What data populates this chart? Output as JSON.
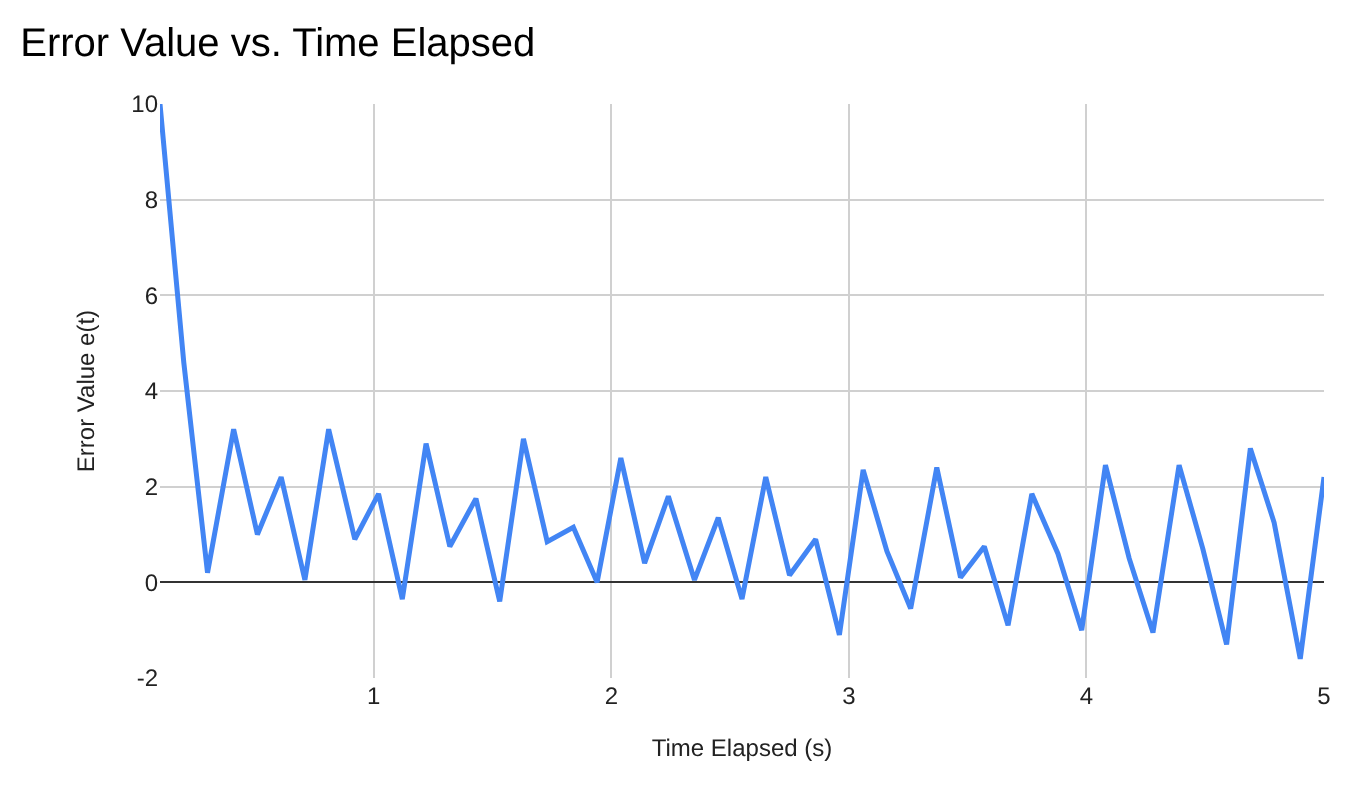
{
  "chart_data": {
    "type": "line",
    "title": "Error Value vs. Time Elapsed",
    "xlabel": "Time Elapsed (s)",
    "ylabel": "Error Value e(t)",
    "x": [
      0.1,
      0.2,
      0.3,
      0.41,
      0.51,
      0.61,
      0.71,
      0.81,
      0.92,
      1.02,
      1.12,
      1.22,
      1.32,
      1.43,
      1.53,
      1.63,
      1.73,
      1.84,
      1.94,
      2.04,
      2.14,
      2.24,
      2.35,
      2.45,
      2.55,
      2.65,
      2.75,
      2.86,
      2.96,
      3.06,
      3.16,
      3.26,
      3.37,
      3.47,
      3.57,
      3.67,
      3.77,
      3.88,
      3.98,
      4.08,
      4.18,
      4.28,
      4.39,
      4.49,
      4.59,
      4.69,
      4.79,
      4.9,
      5.0
    ],
    "series": [
      {
        "color": "#4285f4",
        "values": [
          10,
          4.6,
          0.2,
          3.2,
          1.0,
          2.2,
          0.05,
          3.2,
          0.9,
          1.85,
          -0.35,
          2.9,
          0.75,
          1.75,
          -0.4,
          3.0,
          0.85,
          1.15,
          0.0,
          2.6,
          0.4,
          1.8,
          0.05,
          1.35,
          -0.35,
          2.2,
          0.15,
          0.9,
          -1.1,
          2.35,
          0.65,
          -0.55,
          2.4,
          0.1,
          0.75,
          -0.9,
          1.85,
          0.6,
          -1.0,
          2.45,
          0.5,
          -1.05,
          2.45,
          0.7,
          -1.3,
          2.8,
          1.25,
          -1.6,
          2.2
        ]
      }
    ],
    "xlim": [
      0.1,
      5
    ],
    "xticks": [
      1,
      2,
      3,
      4,
      5
    ],
    "ylim": [
      -2,
      10
    ],
    "yticks": [
      -2,
      0,
      2,
      4,
      6,
      8,
      10
    ],
    "grid": true
  }
}
